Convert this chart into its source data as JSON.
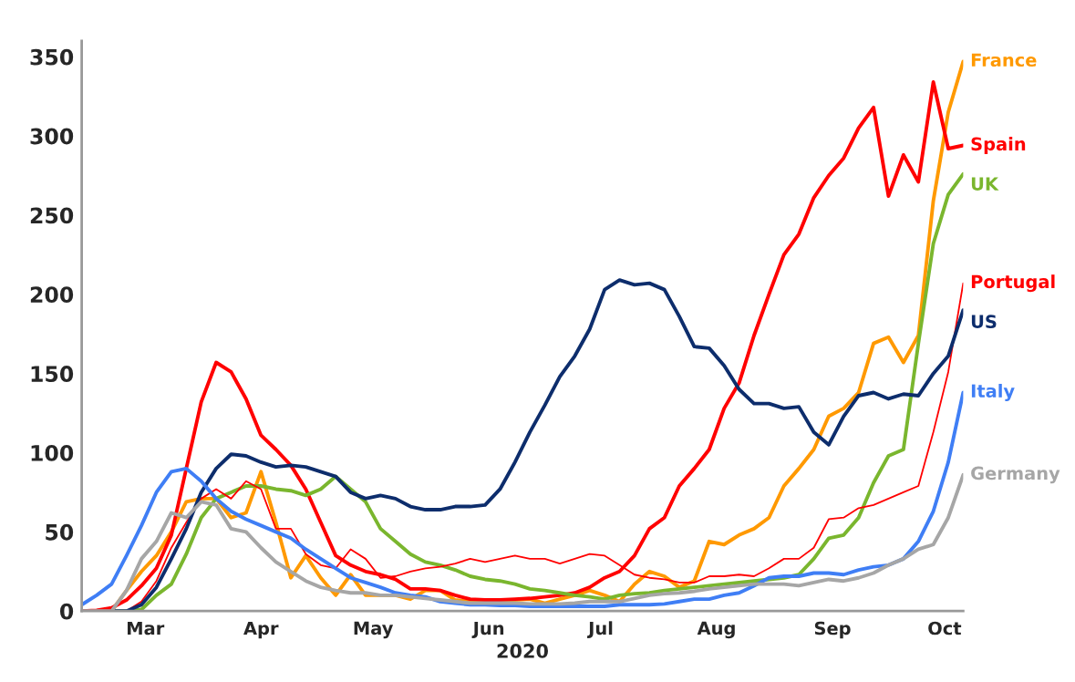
{
  "chart_data": {
    "type": "line",
    "xlabel": "2020",
    "x": [
      "2020-02-27",
      "2020-03-02",
      "2020-03-06",
      "2020-03-10",
      "2020-03-14",
      "2020-03-18",
      "2020-03-22",
      "2020-03-26",
      "2020-03-30",
      "2020-04-03",
      "2020-04-07",
      "2020-04-11",
      "2020-04-15",
      "2020-04-19",
      "2020-04-23",
      "2020-04-27",
      "2020-05-01",
      "2020-05-05",
      "2020-05-09",
      "2020-05-13",
      "2020-05-17",
      "2020-05-21",
      "2020-05-25",
      "2020-05-29",
      "2020-06-02",
      "2020-06-06",
      "2020-06-10",
      "2020-06-14",
      "2020-06-18",
      "2020-06-22",
      "2020-06-26",
      "2020-06-30",
      "2020-07-04",
      "2020-07-08",
      "2020-07-12",
      "2020-07-16",
      "2020-07-20",
      "2020-07-24",
      "2020-07-28",
      "2020-08-01",
      "2020-08-05",
      "2020-08-09",
      "2020-08-13",
      "2020-08-17",
      "2020-08-21",
      "2020-08-25",
      "2020-08-29",
      "2020-09-02",
      "2020-09-06",
      "2020-09-10",
      "2020-09-14",
      "2020-09-18",
      "2020-09-22",
      "2020-09-26",
      "2020-09-30",
      "2020-10-04",
      "2020-10-08",
      "2020-10-12",
      "2020-10-16",
      "2020-10-20"
    ],
    "series": [
      {
        "name": "France",
        "color": "#ff9900",
        "values": [
          null,
          null,
          0,
          13,
          25,
          35,
          50,
          69,
          71,
          71,
          59,
          62,
          88,
          56,
          21,
          35,
          21,
          10,
          23,
          10,
          10,
          10,
          7.5,
          13,
          13,
          7,
          6,
          6,
          5.5,
          7,
          7.5,
          5,
          7.5,
          10,
          13,
          10,
          6,
          17,
          25,
          22,
          15,
          19,
          44,
          42,
          48,
          52,
          59,
          79,
          90,
          102,
          123,
          128,
          138,
          169,
          173,
          157,
          174,
          259,
          315,
          347
        ]
      },
      {
        "name": "Spain",
        "color": "#ff0000",
        "values": [
          0,
          0.5,
          2,
          7,
          16,
          27,
          48,
          90,
          132,
          157,
          151,
          134,
          111,
          102,
          92,
          77,
          56,
          35,
          29,
          25,
          23,
          20,
          14,
          14,
          13,
          10,
          7.5,
          7,
          7,
          7.5,
          8,
          9,
          10,
          11.5,
          15,
          21,
          25,
          35,
          52,
          59,
          79,
          90,
          102,
          128,
          144,
          174,
          200,
          225,
          238,
          261,
          275,
          286,
          305,
          318,
          262,
          288,
          271,
          334,
          292,
          294
        ]
      },
      {
        "name": "UK",
        "color": "#7ab62e",
        "values": [
          null,
          null,
          0,
          0,
          1,
          10,
          17,
          36,
          59,
          71,
          75,
          79,
          79,
          77,
          76,
          73,
          77,
          85,
          77,
          69,
          52,
          44,
          36,
          31,
          29,
          26,
          22,
          20,
          19,
          17,
          14,
          13,
          11.5,
          10,
          9,
          7.5,
          10,
          11,
          11.5,
          13,
          14,
          15,
          16,
          17,
          18,
          19,
          20,
          21,
          23,
          33,
          46,
          48,
          59,
          81,
          98,
          102,
          169,
          232,
          263,
          276
        ]
      },
      {
        "name": "Portugal",
        "color": "#ff0000",
        "values": [
          null,
          null,
          0,
          0,
          6,
          19,
          40,
          56,
          71,
          77,
          71,
          82,
          77,
          52,
          52,
          36,
          29,
          27,
          39,
          33,
          21,
          22,
          25,
          27,
          28,
          30,
          33,
          31,
          33,
          35,
          33,
          33,
          30,
          33,
          36,
          35,
          29,
          23,
          21,
          20,
          18,
          18,
          22,
          22,
          23,
          22,
          27,
          33,
          33,
          40,
          58,
          59,
          65,
          67,
          71,
          75,
          79,
          113,
          151,
          207
        ]
      },
      {
        "name": "US",
        "color": "#0d2d6c",
        "values": [
          null,
          null,
          0,
          0,
          4,
          15,
          33,
          52,
          75,
          90,
          99,
          98,
          94,
          91,
          92,
          91,
          88,
          85,
          75,
          71,
          73,
          71,
          66,
          64,
          64,
          66,
          66,
          67,
          77,
          94,
          113,
          130,
          148,
          161,
          178,
          203,
          209,
          206,
          207,
          203,
          186,
          167,
          166,
          155,
          140,
          131,
          131,
          128,
          129,
          113,
          105,
          123,
          136,
          138,
          134,
          137,
          136,
          150,
          161,
          190
        ]
      },
      {
        "name": "Italy",
        "color": "#3f7ef5",
        "values": [
          4,
          10,
          17,
          35,
          54,
          75,
          88,
          90,
          82,
          71,
          63,
          58,
          54,
          50,
          46,
          39,
          33,
          27,
          21,
          18,
          15,
          11.5,
          10,
          9,
          6,
          5,
          4,
          4,
          3.5,
          3.5,
          3,
          3,
          3,
          3,
          3,
          3,
          4,
          4,
          4,
          4.5,
          6,
          7.5,
          7.5,
          10,
          11.5,
          16,
          21,
          22,
          22,
          24,
          24,
          23,
          26,
          28,
          29,
          33,
          44,
          63,
          94,
          138
        ]
      },
      {
        "name": "Germany",
        "color": "#a6a6a6",
        "values": [
          0,
          0,
          0,
          13,
          33,
          44,
          62,
          59,
          69,
          67,
          52,
          50,
          40,
          31,
          25,
          19,
          15,
          13,
          11.5,
          11.5,
          10,
          10,
          9,
          8,
          7,
          6,
          5,
          5,
          5,
          5,
          4.5,
          4.5,
          4.5,
          5,
          6,
          6,
          6,
          8,
          10,
          11,
          11.5,
          12.5,
          14,
          15,
          16,
          17,
          17,
          17,
          16,
          18,
          20,
          19,
          21,
          24,
          29,
          33,
          39,
          42,
          59,
          86
        ]
      }
    ],
    "xlim": [
      "2020-02-27",
      "2020-10-20"
    ],
    "xticks": [
      {
        "value": "2020-03-15",
        "label": "Mar"
      },
      {
        "value": "2020-04-15",
        "label": "Apr"
      },
      {
        "value": "2020-05-15",
        "label": "May"
      },
      {
        "value": "2020-06-15",
        "label": "Jun"
      },
      {
        "value": "2020-07-15",
        "label": "Jul"
      },
      {
        "value": "2020-08-15",
        "label": "Aug"
      },
      {
        "value": "2020-09-15",
        "label": "Sep"
      },
      {
        "value": "2020-10-15",
        "label": "Oct"
      }
    ],
    "ylim": [
      0,
      360
    ],
    "yticks": [
      0,
      50,
      100,
      150,
      200,
      250,
      300,
      350
    ]
  }
}
